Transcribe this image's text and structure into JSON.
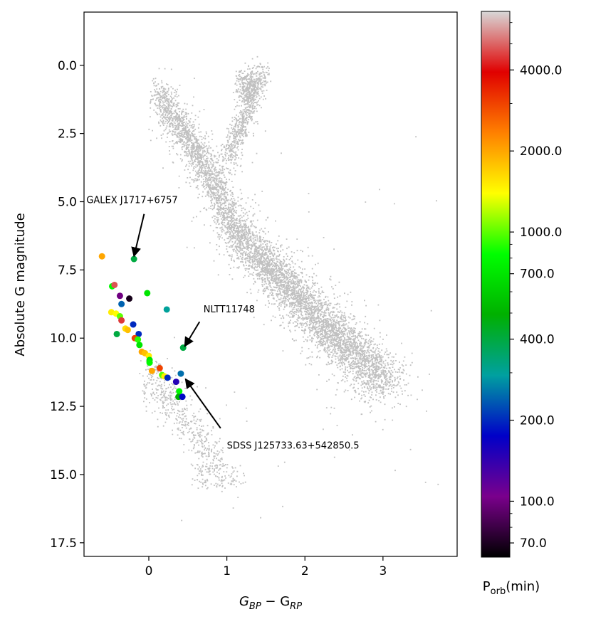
{
  "chart_data": {
    "type": "scatter",
    "title": "",
    "xlabel": {
      "main": "G",
      "sub1": "BP",
      "mid": " − G",
      "sub2": "RP"
    },
    "ylabel": "Absolute G magnitude",
    "xlim": [
      -0.83,
      3.95
    ],
    "ylim": [
      18.0,
      -1.95
    ],
    "y_inverted": true,
    "x_ticks": [
      0,
      1,
      2,
      3
    ],
    "x_tick_labels": [
      "0",
      "1",
      "2",
      "3"
    ],
    "y_ticks": [
      0.0,
      2.5,
      5.0,
      7.5,
      10.0,
      12.5,
      15.0,
      17.5
    ],
    "y_tick_labels": [
      "0.0",
      "2.5",
      "5.0",
      "7.5",
      "10.0",
      "12.5",
      "15.0",
      "17.5"
    ],
    "grid": false,
    "background_color": "#c0c0c0",
    "colorbar": {
      "label": {
        "main": "P",
        "sub": "orb",
        "rest": "(min)"
      },
      "scale": "log",
      "range": [
        62,
        6600
      ],
      "ticks": [
        70,
        100,
        200,
        400,
        700,
        1000,
        2000,
        4000
      ],
      "tick_labels": [
        "70.0",
        "100.0",
        "200.0",
        "400.0",
        "700.0",
        "1000.0",
        "2000.0",
        "4000.0"
      ],
      "colormap": [
        "#000000",
        "#7a008c",
        "#0000c8",
        "#00a0a0",
        "#00b000",
        "#00ff00",
        "#ffff00",
        "#ff8000",
        "#e00000",
        "#d8d8d8"
      ]
    },
    "series": [
      {
        "points": [
          {
            "x": -0.6,
            "y": 7.0,
            "p": 2000
          },
          {
            "x": -0.19,
            "y": 7.1,
            "p": 400
          },
          {
            "x": -0.47,
            "y": 8.1,
            "p": 800
          },
          {
            "x": -0.44,
            "y": 8.05,
            "p": 4800
          },
          {
            "x": -0.37,
            "y": 8.45,
            "p": 100
          },
          {
            "x": -0.25,
            "y": 8.55,
            "p": 68
          },
          {
            "x": -0.02,
            "y": 8.35,
            "p": 700
          },
          {
            "x": -0.35,
            "y": 8.75,
            "p": 240
          },
          {
            "x": 0.23,
            "y": 8.95,
            "p": 300
          },
          {
            "x": -0.48,
            "y": 9.05,
            "p": 1500
          },
          {
            "x": -0.42,
            "y": 9.1,
            "p": 1400
          },
          {
            "x": -0.37,
            "y": 9.2,
            "p": 1000
          },
          {
            "x": -0.35,
            "y": 9.35,
            "p": 4500
          },
          {
            "x": -0.2,
            "y": 9.5,
            "p": 200
          },
          {
            "x": -0.3,
            "y": 9.65,
            "p": 1600
          },
          {
            "x": -0.27,
            "y": 9.7,
            "p": 1800
          },
          {
            "x": -0.41,
            "y": 9.85,
            "p": 400
          },
          {
            "x": -0.13,
            "y": 9.85,
            "p": 200
          },
          {
            "x": -0.18,
            "y": 10.0,
            "p": 3000
          },
          {
            "x": -0.14,
            "y": 10.05,
            "p": 900
          },
          {
            "x": -0.12,
            "y": 10.25,
            "p": 700
          },
          {
            "x": -0.09,
            "y": 10.5,
            "p": 2000
          },
          {
            "x": -0.05,
            "y": 10.55,
            "p": 1800
          },
          {
            "x": 0.0,
            "y": 10.65,
            "p": 1500
          },
          {
            "x": 0.01,
            "y": 10.8,
            "p": 700
          },
          {
            "x": 0.01,
            "y": 10.9,
            "p": 800
          },
          {
            "x": 0.44,
            "y": 10.35,
            "p": 400
          },
          {
            "x": 0.04,
            "y": 11.2,
            "p": 2000
          },
          {
            "x": 0.14,
            "y": 11.1,
            "p": 3000
          },
          {
            "x": 0.17,
            "y": 11.35,
            "p": 1000
          },
          {
            "x": 0.2,
            "y": 11.4,
            "p": 1500
          },
          {
            "x": 0.24,
            "y": 11.45,
            "p": 200
          },
          {
            "x": 0.41,
            "y": 11.3,
            "p": 250
          },
          {
            "x": 0.35,
            "y": 11.6,
            "p": 150
          },
          {
            "x": 0.39,
            "y": 11.95,
            "p": 800
          },
          {
            "x": 0.38,
            "y": 12.15,
            "p": 500
          },
          {
            "x": 0.43,
            "y": 12.15,
            "p": 180
          }
        ]
      }
    ],
    "annotations": [
      {
        "text": "GALEX J1717+6757",
        "label_x": -0.8,
        "label_y": 5.05,
        "tail_x": -0.06,
        "tail_y": 5.45,
        "arrow_x": -0.19,
        "arrow_y": 7.0
      },
      {
        "text": "NLTT11748",
        "label_x": 0.7,
        "label_y": 9.05,
        "tail_x": 0.65,
        "tail_y": 9.4,
        "arrow_x": 0.46,
        "arrow_y": 10.3
      },
      {
        "text": "SDSS J125733.63+542850.5",
        "label_x": 1.0,
        "label_y": 14.05,
        "tail_x": 0.92,
        "tail_y": 13.3,
        "arrow_x": 0.47,
        "arrow_y": 11.5
      }
    ]
  }
}
